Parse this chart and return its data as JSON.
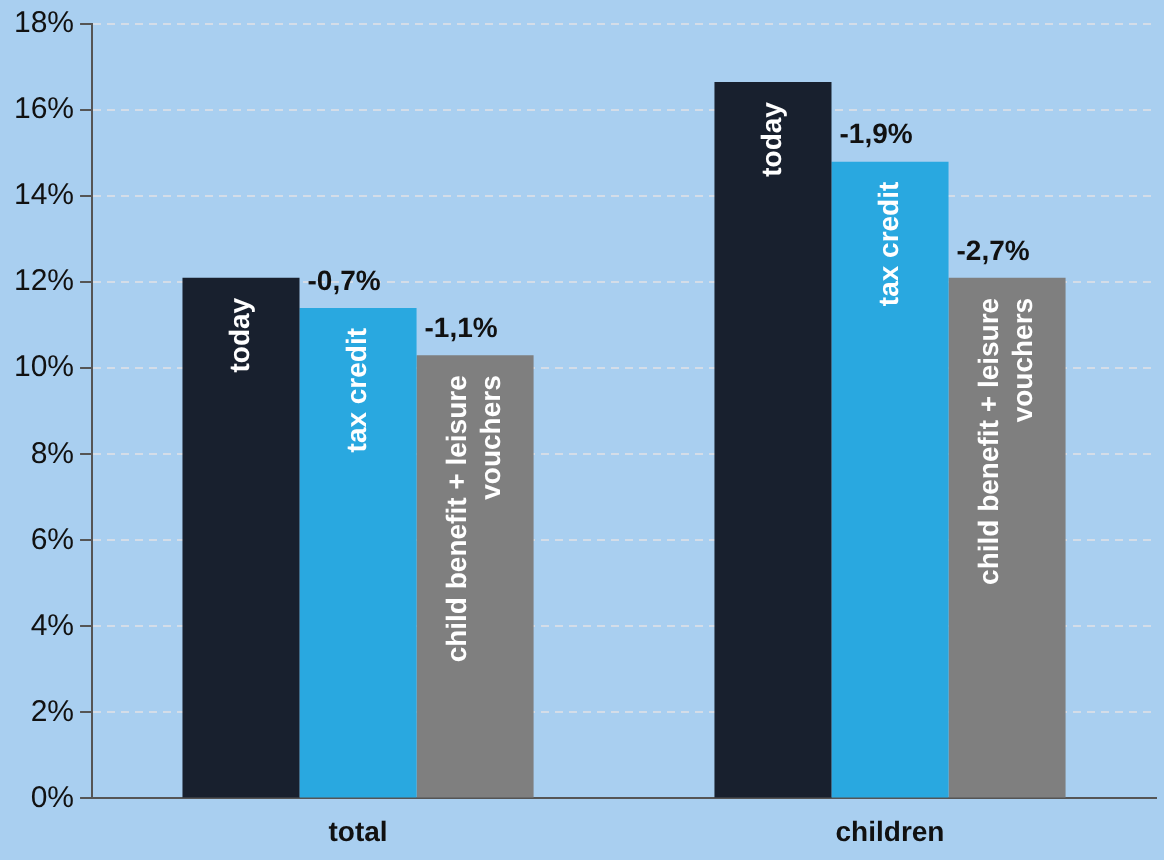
{
  "chart_data": {
    "type": "bar",
    "categories": [
      "total",
      "children"
    ],
    "series": [
      {
        "name": "today",
        "color": "#18202e",
        "values": [
          12.1,
          16.65
        ]
      },
      {
        "name": "tax credit",
        "color": "#29a8e0",
        "values": [
          11.4,
          14.8
        ]
      },
      {
        "name": "child benefit + leisure vouchers",
        "color": "#7f7f7f",
        "values": [
          10.3,
          12.1
        ]
      }
    ],
    "annotations": [
      {
        "text": "-0,7%",
        "x": "total",
        "y": 11.4
      },
      "-1,1%",
      {
        "text": "-1,9%",
        "x": "children",
        "y": 14.8
      },
      "-2,7%"
    ],
    "ylim": [
      0,
      18
    ],
    "yticks": [
      {
        "value": 0,
        "label": "0%"
      },
      {
        "value": 2,
        "label": "2%"
      },
      {
        "value": 4,
        "label": "4%"
      },
      {
        "value": 6,
        "label": "6%"
      },
      {
        "value": 8,
        "label": "8%"
      },
      {
        "value": 10,
        "label": "10%"
      },
      {
        "value": 12,
        "label": "12%"
      },
      {
        "value": 14,
        "label": "14%"
      },
      {
        "value": 16,
        "label": "16%"
      },
      {
        "value": 18,
        "label": "18%"
      }
    ],
    "grid": "y",
    "legend": false
  }
}
